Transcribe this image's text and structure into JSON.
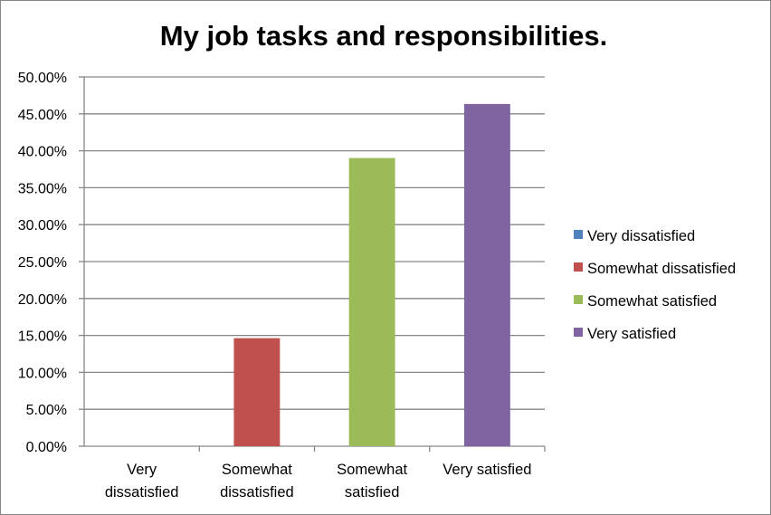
{
  "chart_data": {
    "type": "bar",
    "title": "My job tasks and responsibilities.",
    "xlabel": "",
    "ylabel": "",
    "categories": [
      [
        "Very",
        "dissatisfied"
      ],
      [
        "Somewhat",
        "dissatisfied"
      ],
      [
        "Somewhat",
        "satisfied"
      ],
      [
        "Very satisfied"
      ]
    ],
    "values": [
      0.0,
      14.63,
      39.02,
      46.34
    ],
    "colors": [
      "#4F81BD",
      "#C0504D",
      "#9BBB59",
      "#8064A2"
    ],
    "ylim": [
      0,
      50
    ],
    "yticks": [
      "0.00%",
      "5.00%",
      "10.00%",
      "15.00%",
      "20.00%",
      "25.00%",
      "30.00%",
      "35.00%",
      "40.00%",
      "45.00%",
      "50.00%"
    ],
    "ytick_values": [
      0,
      5,
      10,
      15,
      20,
      25,
      30,
      35,
      40,
      45,
      50
    ],
    "grid": true,
    "legend_position": "right",
    "legend": [
      {
        "label": "Very dissatisfied",
        "color": "#4F81BD"
      },
      {
        "label": "Somewhat dissatisfied",
        "color": "#C0504D"
      },
      {
        "label": "Somewhat satisfied",
        "color": "#9BBB59"
      },
      {
        "label": "Very satisfied",
        "color": "#8064A2"
      }
    ]
  }
}
